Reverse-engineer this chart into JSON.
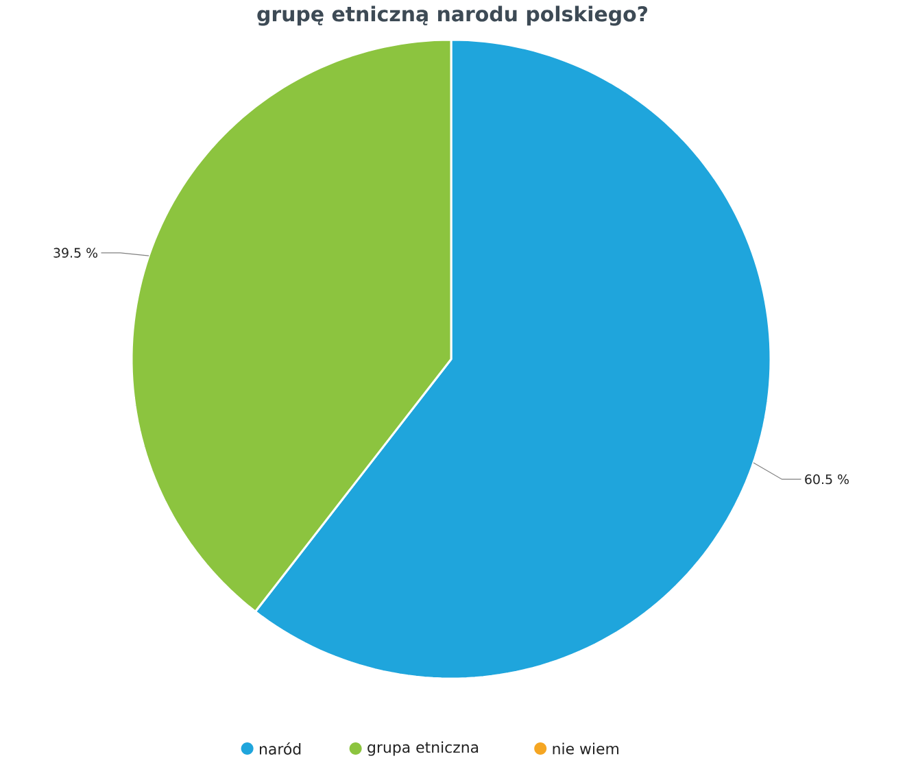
{
  "chart_data": {
    "type": "pie",
    "title": "grupę etniczną narodu polskiego?",
    "categories": [
      "naród",
      "grupa etniczna",
      "nie wiem"
    ],
    "values": [
      60.5,
      39.5,
      0
    ],
    "colors": [
      "#1fa5dc",
      "#8cc43f",
      "#f5a623"
    ],
    "value_labels": [
      "60.5 %",
      "39.5 %",
      null
    ],
    "legend": "bottom"
  }
}
